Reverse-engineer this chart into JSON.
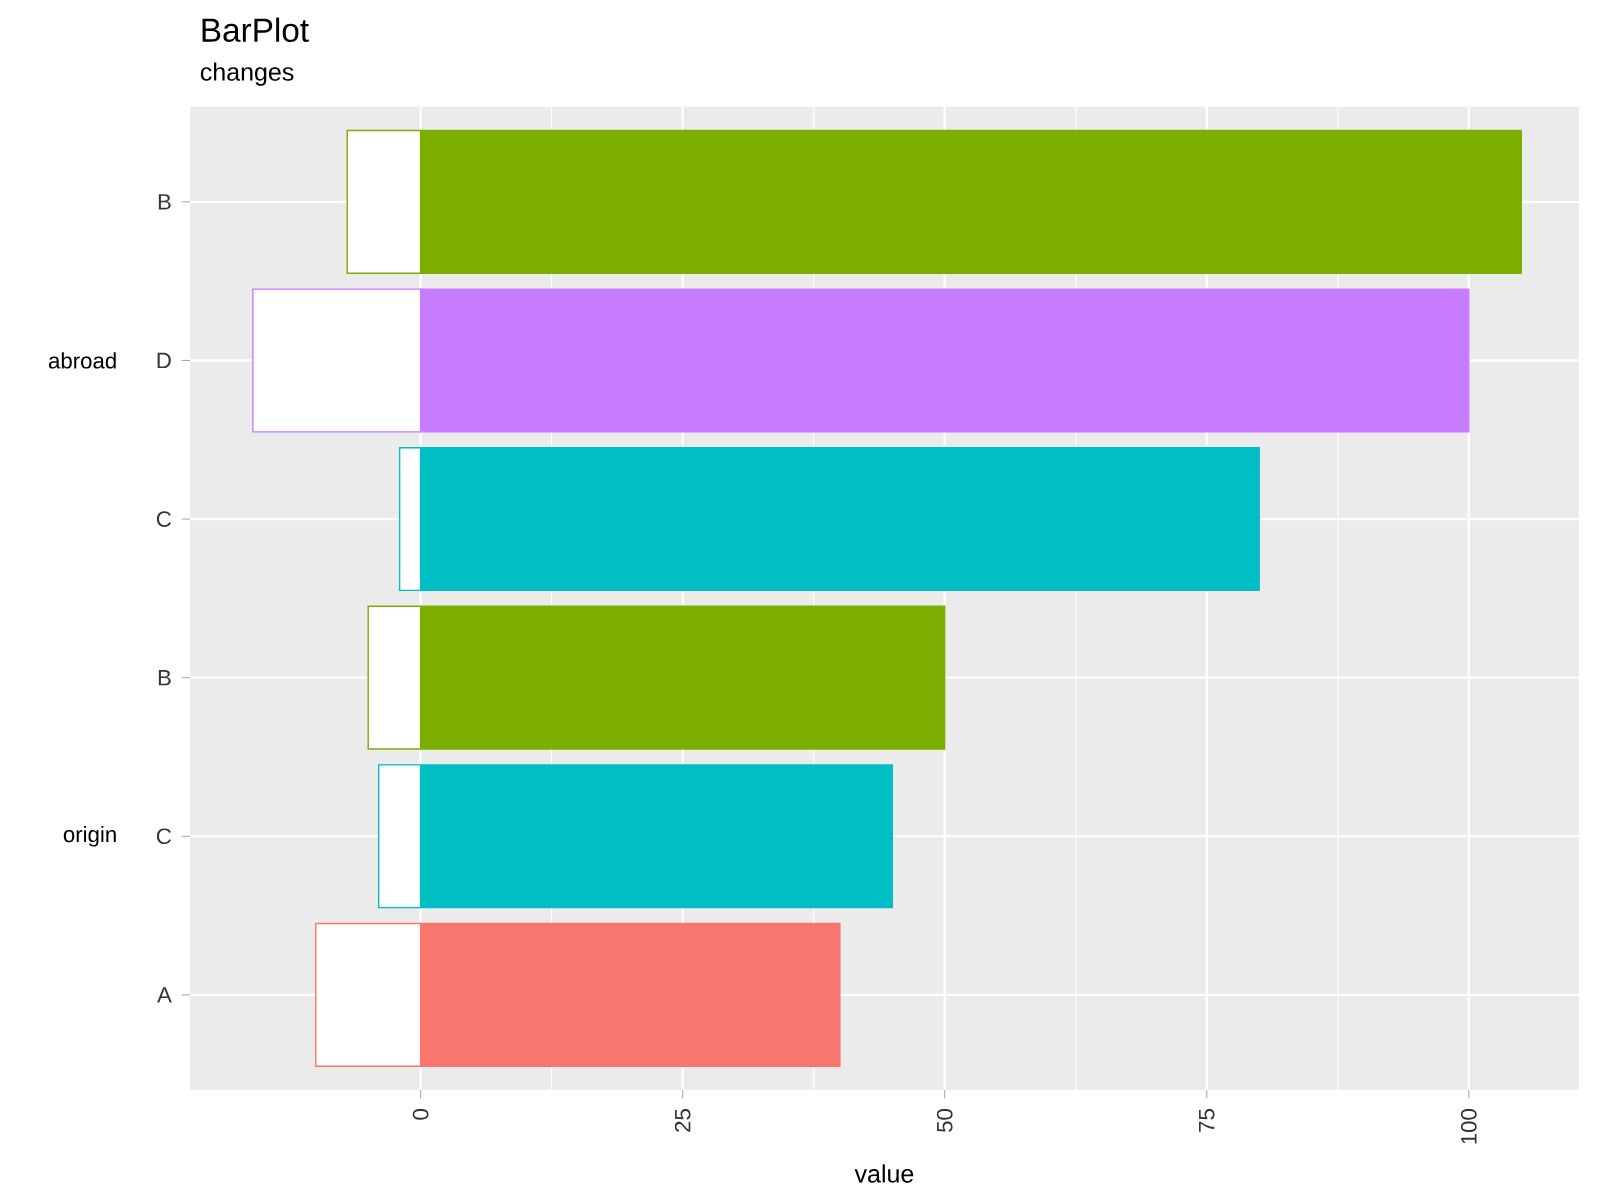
{
  "chart_data": {
    "type": "bar",
    "stacked": true,
    "orientation": "horizontal",
    "title": "BarPlot",
    "subtitle": "changes",
    "xlabel": "value",
    "categories": [
      "B",
      "D",
      "C",
      "B",
      "C",
      "A"
    ],
    "series": [
      {
        "colors": [
          "#7cae00",
          "#c77cff",
          "#00bfc4",
          "#7cae00",
          "#00bfc4",
          "#f8766d"
        ],
        "values": [
          105,
          100,
          80,
          50,
          45,
          40
        ]
      },
      {
        "colors": [
          "#7cae00",
          "#c77cff",
          "#00bfc4",
          "#7cae00",
          "#00bfc4",
          "#f8766d"
        ],
        "values": [
          -7,
          -16,
          -2,
          -5,
          -4,
          -10
        ]
      }
    ],
    "xlim": [
      -22,
      110.5
    ],
    "xticks": [
      0,
      25,
      50,
      75,
      100
    ],
    "grid": true,
    "annotations": [
      "abroad",
      "origin"
    ]
  }
}
